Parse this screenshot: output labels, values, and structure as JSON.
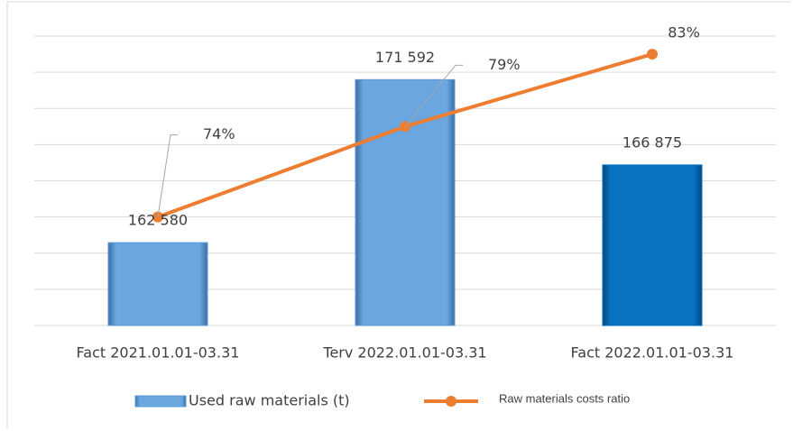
{
  "chart_data": {
    "type": "bar_line",
    "categories": [
      "Fact 2021.01.01-03.31",
      "Terv 2022.01.01-03.31",
      "Fact 2022.01.01-03.31"
    ],
    "series": [
      {
        "name": "Used raw materials (t)",
        "type": "bar",
        "color": "#5b9bd5",
        "point_colors": [
          "#5b9bd5",
          "#5b9bd5",
          "#0070c0"
        ],
        "values": [
          162580,
          171592,
          166875
        ],
        "value_labels": [
          "162 580",
          "171 592",
          "166 875"
        ]
      },
      {
        "name": "Raw materials costs ratio",
        "type": "line",
        "axis": "y2",
        "color": "#ed7d31",
        "values": [
          74,
          79,
          83
        ],
        "value_labels": [
          "74%",
          "79%",
          "83%"
        ]
      }
    ],
    "ylim": [
      158000,
      174000
    ],
    "yticks": [
      158000,
      160000,
      162000,
      164000,
      166000,
      168000,
      170000,
      172000,
      174000
    ],
    "y2lim": [
      68,
      84
    ],
    "grid": true,
    "legend": "bottom"
  }
}
